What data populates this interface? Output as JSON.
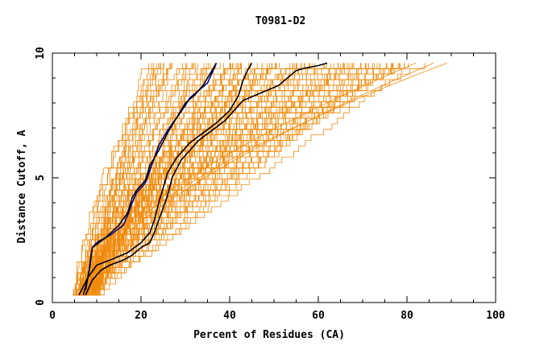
{
  "chart_data": {
    "type": "line",
    "title": "T0981-D2",
    "xlabel": "Percent of Residues (CA)",
    "ylabel": "Distance Cutoff, A",
    "xlim": [
      0,
      100
    ],
    "ylim": [
      0,
      10
    ],
    "x_ticks": [
      0,
      20,
      40,
      60,
      80,
      100
    ],
    "y_ticks": [
      0,
      5,
      10
    ],
    "grid": false,
    "colors": {
      "background_curves": "#f08a0c",
      "highlight_blue": "#00008b",
      "highlight_black": "#000000"
    },
    "highlighted_series": [
      {
        "color": "#00008b",
        "points": [
          [
            7.5,
            0.5
          ],
          [
            8.5,
            1.5
          ],
          [
            9,
            2.2
          ],
          [
            10,
            2.4
          ],
          [
            13,
            2.7
          ],
          [
            16,
            3.1
          ],
          [
            17,
            3.5
          ],
          [
            18,
            4.0
          ],
          [
            19,
            4.4
          ],
          [
            20,
            4.6
          ],
          [
            21,
            4.8
          ],
          [
            22,
            5.3
          ],
          [
            23,
            5.8
          ],
          [
            24,
            6.3
          ],
          [
            26,
            6.9
          ],
          [
            28,
            7.4
          ],
          [
            30,
            7.9
          ],
          [
            31,
            8.2
          ],
          [
            33,
            8.5
          ],
          [
            35,
            8.8
          ],
          [
            36,
            9.2
          ],
          [
            37,
            9.6
          ]
        ]
      },
      {
        "color": "#000000",
        "points": [
          [
            7,
            0.3
          ],
          [
            8,
            1.0
          ],
          [
            9,
            2.2
          ],
          [
            12,
            2.6
          ],
          [
            15,
            3.1
          ],
          [
            17,
            3.6
          ],
          [
            18,
            4.2
          ],
          [
            19,
            4.5
          ],
          [
            21,
            4.9
          ],
          [
            22,
            5.5
          ],
          [
            24,
            6.1
          ],
          [
            26,
            6.8
          ],
          [
            28,
            7.4
          ],
          [
            30,
            8.0
          ],
          [
            32,
            8.3
          ],
          [
            34,
            8.7
          ],
          [
            36,
            9.3
          ],
          [
            37,
            9.6
          ]
        ]
      },
      {
        "color": "#000000",
        "points": [
          [
            6,
            0.3
          ],
          [
            8,
            1.0
          ],
          [
            10,
            1.5
          ],
          [
            13,
            1.7
          ],
          [
            17,
            2.0
          ],
          [
            20,
            2.4
          ],
          [
            22,
            2.8
          ],
          [
            23,
            3.3
          ],
          [
            24,
            4.0
          ],
          [
            25,
            4.6
          ],
          [
            26,
            5.2
          ],
          [
            28,
            5.8
          ],
          [
            31,
            6.4
          ],
          [
            34,
            6.8
          ],
          [
            37,
            7.2
          ],
          [
            40,
            7.7
          ],
          [
            42,
            8.3
          ],
          [
            43,
            8.9
          ],
          [
            44,
            9.3
          ],
          [
            45,
            9.6
          ]
        ]
      },
      {
        "color": "#000000",
        "points": [
          [
            7.5,
            0.3
          ],
          [
            9,
            0.9
          ],
          [
            11,
            1.3
          ],
          [
            13,
            1.5
          ],
          [
            16,
            1.7
          ],
          [
            18,
            1.9
          ],
          [
            20,
            2.2
          ],
          [
            22,
            2.4
          ],
          [
            23,
            2.8
          ],
          [
            24,
            3.3
          ],
          [
            25,
            3.8
          ],
          [
            26,
            4.3
          ],
          [
            27,
            5.0
          ],
          [
            29,
            5.7
          ],
          [
            31,
            6.1
          ],
          [
            33,
            6.5
          ],
          [
            36,
            6.9
          ],
          [
            39,
            7.3
          ],
          [
            41,
            7.7
          ],
          [
            43,
            8.1
          ],
          [
            47,
            8.4
          ],
          [
            51,
            8.7
          ],
          [
            53,
            9.0
          ],
          [
            55,
            9.3
          ],
          [
            57,
            9.4
          ],
          [
            60,
            9.5
          ],
          [
            62,
            9.6
          ]
        ]
      }
    ]
  }
}
